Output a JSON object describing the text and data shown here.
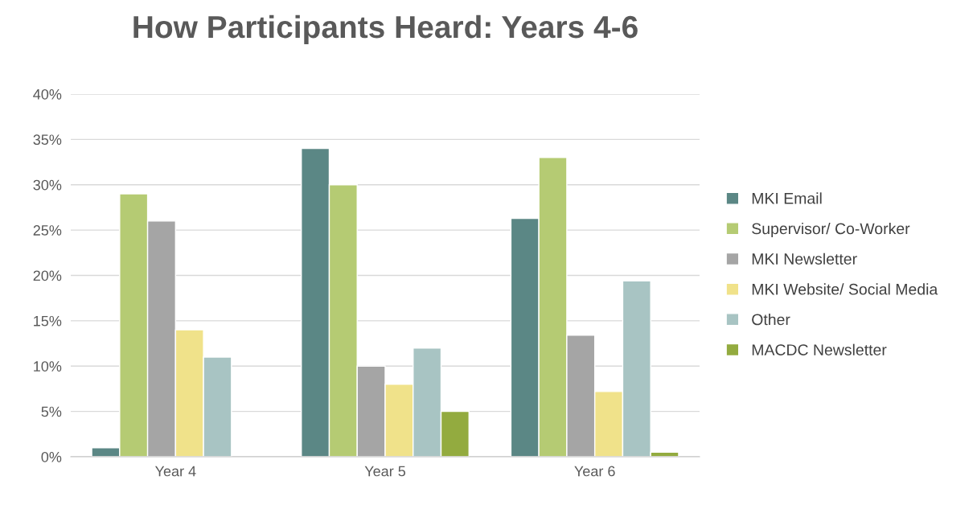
{
  "chart_data": {
    "type": "bar",
    "title": "How Participants Heard: Years 4-6",
    "categories": [
      "Year 4",
      "Year 5",
      "Year 6"
    ],
    "series": [
      {
        "name": "MKI Email",
        "color": "#5b8785",
        "values": [
          1,
          34,
          26.3
        ]
      },
      {
        "name": "Supervisor/ Co-Worker",
        "color": "#b5cb73",
        "values": [
          29,
          30,
          33
        ]
      },
      {
        "name": "MKI Newsletter",
        "color": "#a5a5a5",
        "values": [
          26,
          10,
          13.4
        ]
      },
      {
        "name": "MKI Website/ Social Media",
        "color": "#f0e28a",
        "values": [
          14,
          8,
          7.2
        ]
      },
      {
        "name": "Other",
        "color": "#a8c4c3",
        "values": [
          11,
          12,
          19.4
        ]
      },
      {
        "name": "MACDC Newsletter",
        "color": "#93ab3f",
        "values": [
          null,
          5,
          0.5
        ]
      }
    ],
    "ylim": [
      0,
      40
    ],
    "yticks": [
      {
        "value": 0,
        "label": "0%"
      },
      {
        "value": 5,
        "label": "5%"
      },
      {
        "value": 10,
        "label": "10%"
      },
      {
        "value": 15,
        "label": "15%"
      },
      {
        "value": 20,
        "label": "20%"
      },
      {
        "value": 25,
        "label": "25%"
      },
      {
        "value": 30,
        "label": "30%"
      },
      {
        "value": 35,
        "label": "35%"
      },
      {
        "value": 40,
        "label": "40%"
      }
    ],
    "grid": "y",
    "legend": "right"
  }
}
